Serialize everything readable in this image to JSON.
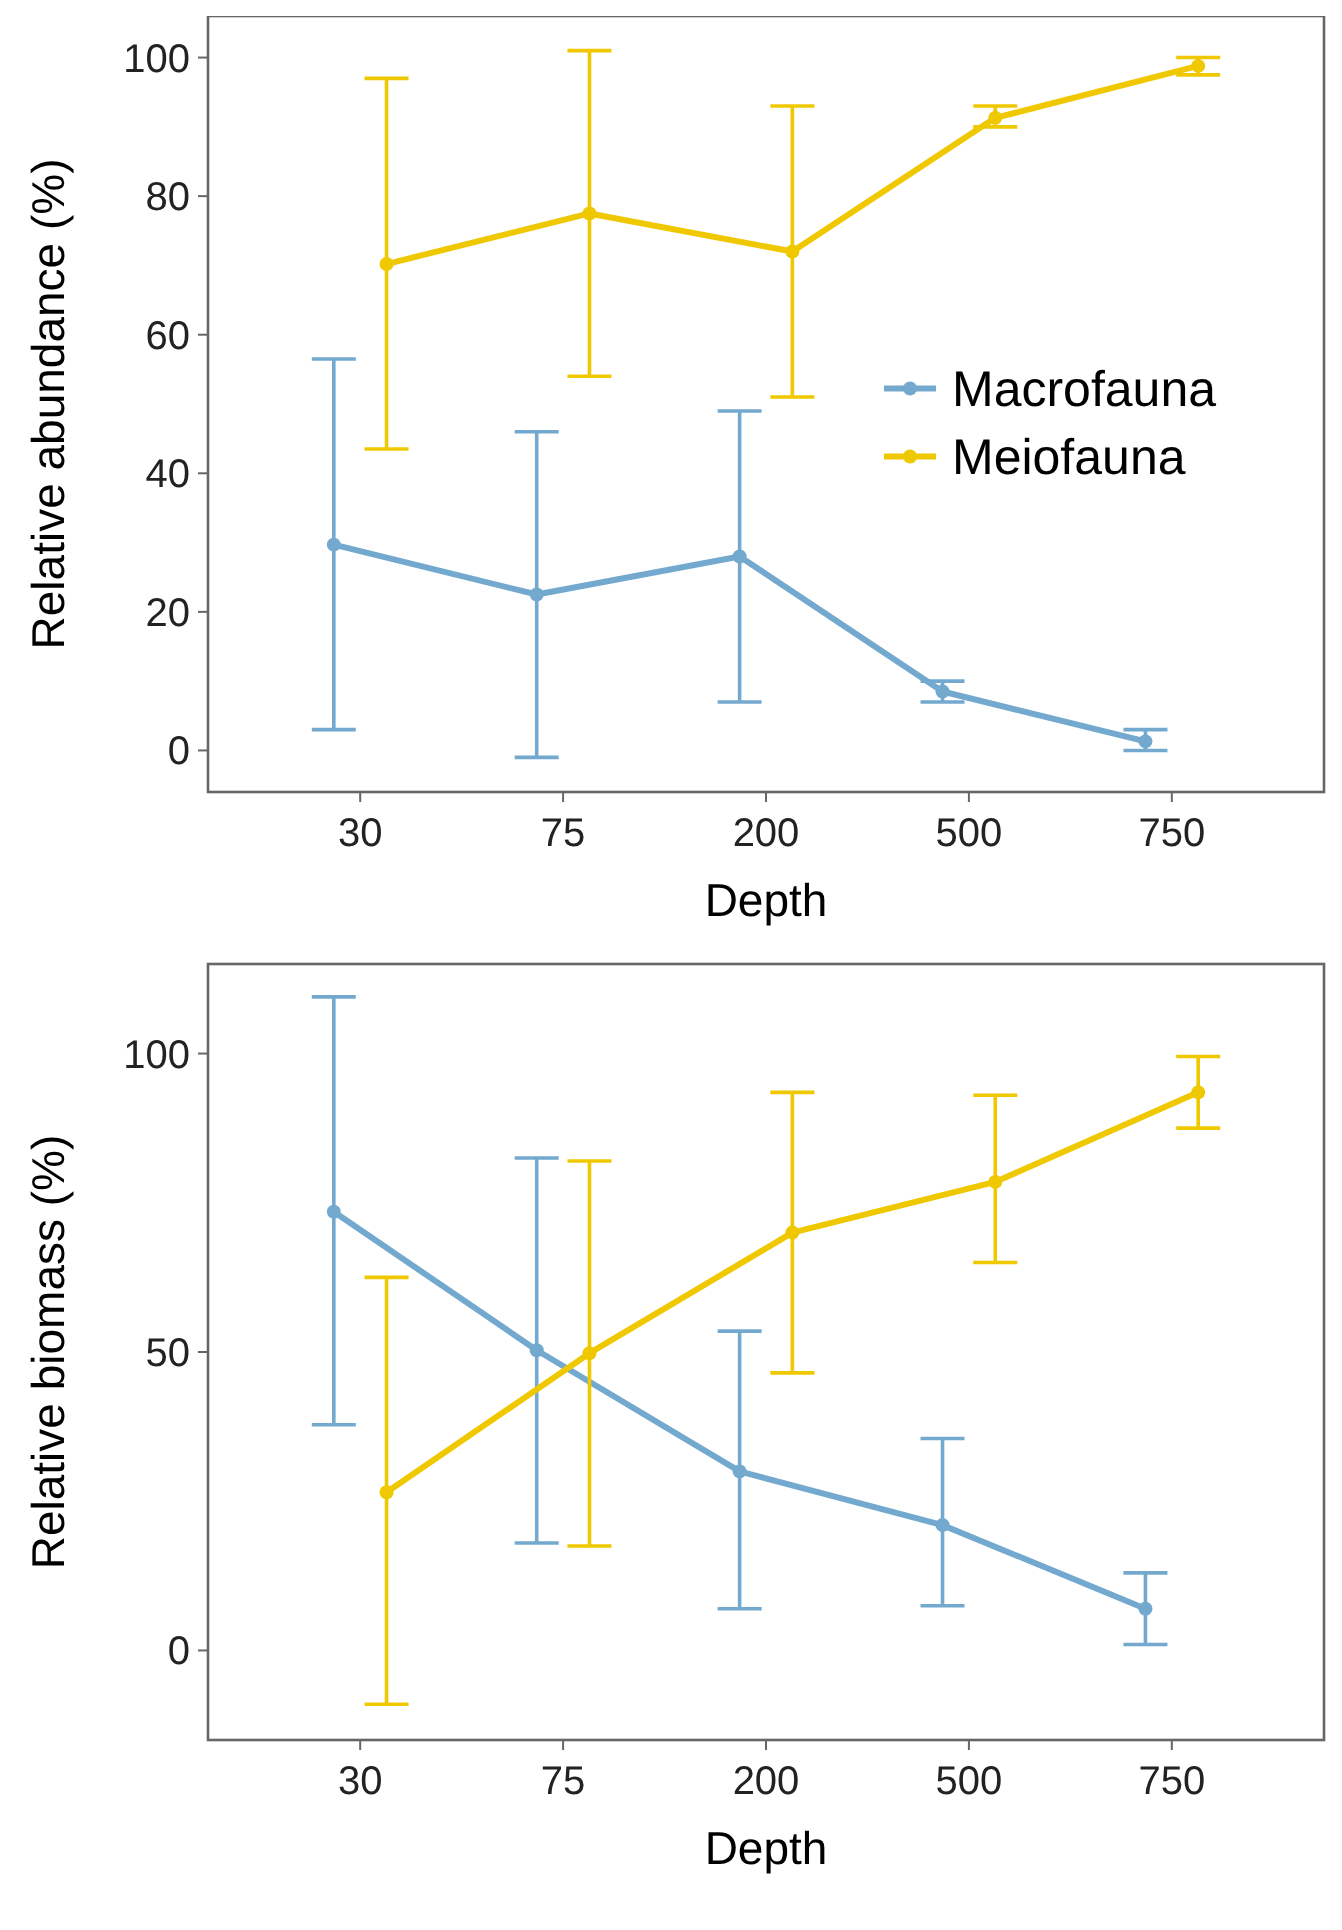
{
  "chart_data": [
    {
      "type": "line",
      "xlabel": "Depth",
      "ylabel": "Relative abundance (%)",
      "categories": [
        "30",
        "75",
        "200",
        "500",
        "750"
      ],
      "ylim": [
        -6,
        106
      ],
      "yticks": [
        0,
        20,
        40,
        60,
        80,
        100
      ],
      "grid": false,
      "legend": "right",
      "marker": "circle",
      "line_style": "solid",
      "series": [
        {
          "name": "Macrofauna",
          "color": "#74a9cf",
          "values": [
            29.7,
            22.5,
            28,
            8.5,
            1.3
          ],
          "errors": [
            [
              3,
              56.5
            ],
            [
              -1,
              46
            ],
            [
              7,
              49
            ],
            [
              7,
              10
            ],
            [
              0,
              3
            ]
          ]
        },
        {
          "name": "Meiofauna",
          "color": "#f0c800",
          "values": [
            70.2,
            77.5,
            72,
            91.3,
            98.8
          ],
          "errors": [
            [
              43.5,
              97
            ],
            [
              54,
              101
            ],
            [
              51,
              93
            ],
            [
              90,
              93
            ],
            [
              97.5,
              100
            ]
          ]
        }
      ]
    },
    {
      "type": "line",
      "xlabel": "Depth",
      "ylabel": "Relative biomass (%)",
      "categories": [
        "30",
        "75",
        "200",
        "500",
        "750"
      ],
      "ylim": [
        -15,
        115
      ],
      "yticks": [
        0,
        50,
        100
      ],
      "grid": false,
      "legend": false,
      "marker": "circle",
      "line_style": "solid",
      "series": [
        {
          "color": "#74a9cf",
          "values": [
            73.5,
            50.3,
            30,
            21,
            7
          ],
          "errors": [
            [
              37.8,
              109.5
            ],
            [
              18,
              82.5
            ],
            [
              7,
              53.5
            ],
            [
              7.5,
              35.5
            ],
            [
              1,
              13
            ]
          ]
        },
        {
          "color": "#f0c800",
          "values": [
            26.5,
            49.8,
            70,
            78.5,
            93.5
          ],
          "errors": [
            [
              -9,
              62.5
            ],
            [
              17.5,
              82
            ],
            [
              46.5,
              93.5
            ],
            [
              65,
              93
            ],
            [
              87.5,
              99.5
            ]
          ]
        }
      ]
    }
  ]
}
